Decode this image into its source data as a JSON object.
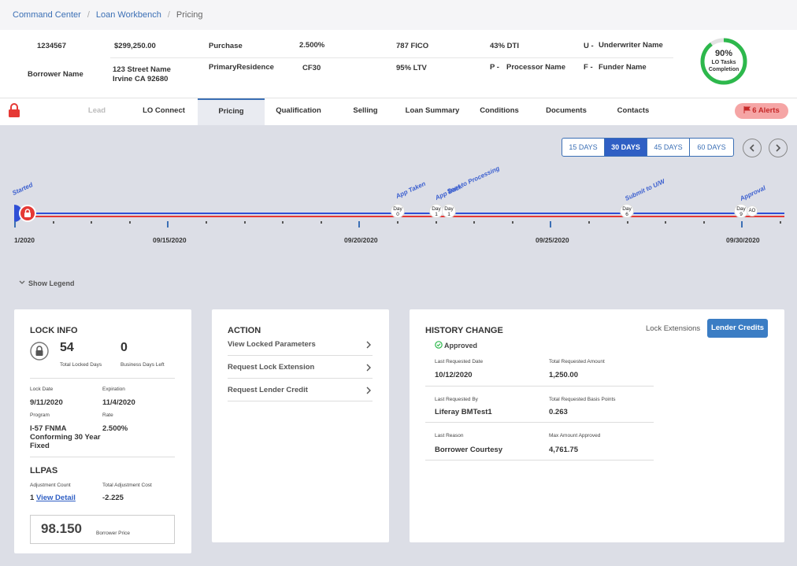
{
  "breadcrumb": {
    "items": [
      "Command Center",
      "Loan Workbench"
    ],
    "current": "Pricing"
  },
  "loan": {
    "number": "1234567",
    "amount": "$299,250.00",
    "purpose": "Purchase",
    "rate": "2.500%",
    "fico": "787 FICO",
    "dti": "43% DTI",
    "u_prefix": "U -",
    "underwriter": "Underwriter Name",
    "borrower": "Borrower Name",
    "address_line1": "123 Street Name",
    "address_line2": "Irvine CA 92680",
    "occupancy": "PrimaryResidence",
    "product": "CF30",
    "ltv": "95% LTV",
    "p_prefix": "P -",
    "processor": "Processor Name",
    "f_prefix": "F -",
    "funder": "Funder Name"
  },
  "tasks": {
    "percent_text": "90%",
    "percent": 0.9,
    "label_line1": "LO Tasks",
    "label_line2": "Completion",
    "color": "#2db84c"
  },
  "tabs": [
    "Lead",
    "LO Connect",
    "Pricing",
    "Qualification",
    "Selling",
    "Loan Summary",
    "Conditions",
    "Documents",
    "Contacts"
  ],
  "active_tab": "Pricing",
  "alerts": {
    "label": "6 Alerts",
    "icon": "flag-icon"
  },
  "days": {
    "options": [
      "15 DAYS",
      "30 DAYS",
      "45 DAYS",
      "60 DAYS"
    ],
    "selected": "30 DAYS"
  },
  "timeline": {
    "events": [
      {
        "label": "Started"
      },
      {
        "label": "App Taken",
        "day_word": "Day",
        "day": "0"
      },
      {
        "label": "App Back",
        "day_word": "Day",
        "day": "1"
      },
      {
        "label": "Sent to Processing",
        "day_word": "Day",
        "day": "1"
      },
      {
        "label": "Submit to U/W",
        "day_word": "Day",
        "day": "6"
      },
      {
        "label": "Approval",
        "day_word": "Day",
        "day": "9"
      }
    ],
    "extra_marker": "AO",
    "dates": [
      "1/2020",
      "09/15/2020",
      "09/20/2020",
      "09/25/2020",
      "09/30/2020"
    ],
    "colors": {
      "blue": "#2f4fd6",
      "red": "#e53935"
    }
  },
  "legend": {
    "label": "Show Legend"
  },
  "lock_info": {
    "title": "LOCK INFO",
    "total_locked_days": "54",
    "total_locked_days_label": "Total Locked Days",
    "business_days_left": "0",
    "business_days_left_label": "Business Days Left",
    "lock_date_label": "Lock Date",
    "lock_date": "9/11/2020",
    "expiration_label": "Expiration",
    "expiration": "11/4/2020",
    "program_label": "Program",
    "program_line1": "I-57 FNMA",
    "program_line2": "Conforming 30 Year",
    "program_line3": "Fixed",
    "rate_label": "Rate",
    "rate": "2.500%",
    "llpas_title": "LLPAS",
    "adj_count_label": "Adjustment Count",
    "adj_count": "1",
    "view_detail": "View Detail",
    "total_adj_cost_label": "Total Adjustment Cost",
    "total_adj_cost": "-2.225",
    "borrower_price": "98.150",
    "borrower_price_label": "Borrower Price"
  },
  "action": {
    "title": "ACTION",
    "items": [
      "View Locked Parameters",
      "Request Lock Extension",
      "Request Lender Credit"
    ]
  },
  "history": {
    "title": "HISTORY CHANGE",
    "lock_extensions": "Lock Extensions",
    "lender_credits": "Lender Credits",
    "status": "Approved",
    "last_requested_date_label": "Last Requested Date",
    "last_requested_date": "10/12/2020",
    "total_requested_amount_label": "Total Requested Amount",
    "total_requested_amount": "1,250.00",
    "last_requested_by_label": "Last Requested By",
    "last_requested_by": "Liferay BMTest1",
    "total_basis_points_label": "Total Requested Basis Points",
    "total_basis_points": "0.263",
    "last_reason_label": "Last Reason",
    "last_reason": "Borrower Courtesy",
    "max_amount_label": "Max Amount Approved",
    "max_amount": "4,761.75"
  }
}
